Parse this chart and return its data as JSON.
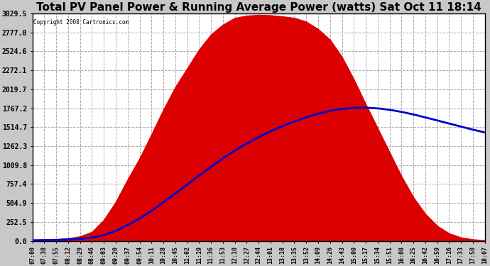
{
  "title": "Total PV Panel Power & Running Average Power (watts) Sat Oct 11 18:14",
  "copyright": "Copyright 2008 Cartronics.com",
  "bg_color": "#c8c8c8",
  "plot_bg_color": "#ffffff",
  "fill_color": "#dd0000",
  "line_color": "#0000cc",
  "grid_color": "#aaaaaa",
  "title_fontsize": 11,
  "yticks": [
    0.0,
    252.5,
    504.9,
    757.4,
    1009.8,
    1262.3,
    1514.7,
    1767.2,
    2019.7,
    2272.1,
    2524.6,
    2777.0,
    3029.5
  ],
  "x_labels": [
    "07:00",
    "07:38",
    "07:55",
    "08:12",
    "08:29",
    "08:46",
    "09:03",
    "09:20",
    "09:37",
    "09:54",
    "10:11",
    "10:28",
    "10:45",
    "11:02",
    "11:19",
    "11:36",
    "11:53",
    "12:10",
    "12:27",
    "12:44",
    "13:01",
    "13:18",
    "13:35",
    "13:52",
    "14:09",
    "14:26",
    "14:43",
    "15:00",
    "15:17",
    "15:34",
    "15:51",
    "16:08",
    "16:25",
    "16:42",
    "16:59",
    "17:16",
    "17:33",
    "17:50",
    "18:07"
  ],
  "ymax": 3029.5,
  "ymin": 0.0,
  "pv_power": [
    8,
    12,
    20,
    35,
    60,
    120,
    280,
    520,
    820,
    1100,
    1420,
    1750,
    2050,
    2300,
    2550,
    2750,
    2880,
    2970,
    3000,
    3010,
    3005,
    2990,
    2970,
    2920,
    2820,
    2680,
    2450,
    2150,
    1820,
    1500,
    1180,
    860,
    580,
    360,
    200,
    100,
    45,
    20,
    8
  ]
}
